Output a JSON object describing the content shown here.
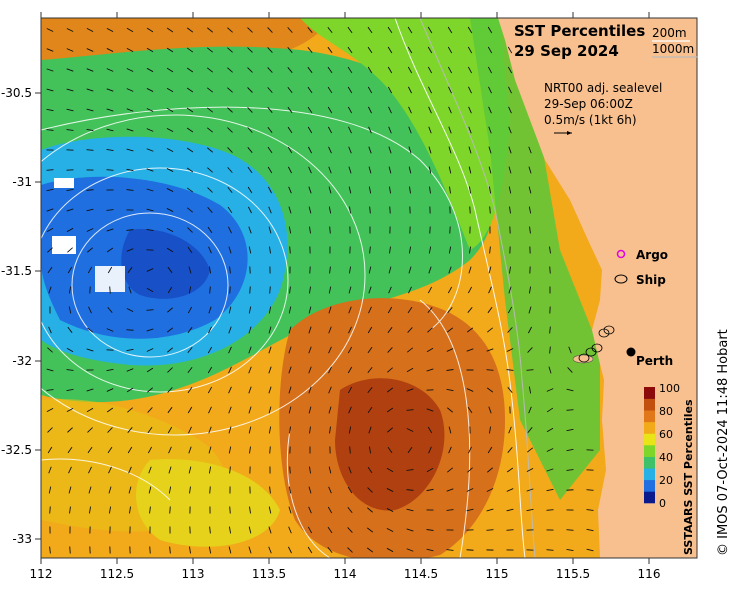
{
  "title": {
    "line1": "SST Percentiles",
    "line2": "29 Sep 2024"
  },
  "isobath_legend": {
    "shallow": "200m",
    "deep": "1000m"
  },
  "current_legend": {
    "line1": "NRT00 adj. sealevel",
    "line2": "29-Sep 06:00Z",
    "line3": "0.5m/s (1kt 6h)"
  },
  "symbols": {
    "argo": "Argo",
    "ship": "Ship"
  },
  "city": {
    "name": "Perth",
    "lon": 115.86,
    "lat": -31.95
  },
  "colorbar": {
    "title": "SSTAARS SST Percentiles",
    "ticks": [
      "100",
      "80",
      "60",
      "40",
      "20",
      "0"
    ],
    "colors": [
      "#0a1a8c",
      "#1f6fe0",
      "#26b0e6",
      "#3fc16a",
      "#7ed62a",
      "#e8e418",
      "#f2a91a",
      "#e0781a",
      "#c2500e",
      "#8c0a0a"
    ]
  },
  "axes": {
    "x_ticks": [
      "112",
      "112.5",
      "113",
      "113.5",
      "114",
      "114.5",
      "115",
      "115.5",
      "116"
    ],
    "y_ticks": [
      "-30.5",
      "-31",
      "-31.5",
      "-32",
      "-32.5",
      "-33"
    ],
    "lon_range": [
      112,
      116.3
    ],
    "lat_range": [
      -33.1,
      -30.08
    ]
  },
  "credit": "© IMOS 07-Oct-2024 11:48 Hobart",
  "colors": {
    "land": "#f9c08f",
    "orange": "#f2a91a",
    "dark_orange": "#d6701a",
    "green": "#43c25a",
    "blue": "#1f8be0"
  }
}
